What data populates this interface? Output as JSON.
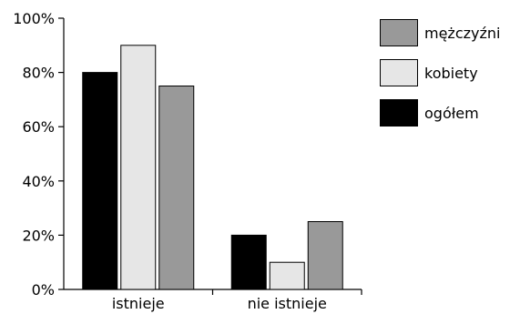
{
  "chart_data": {
    "type": "bar",
    "categories": [
      "istnieje",
      "nie istnieje"
    ],
    "series": [
      {
        "name": "ogółem",
        "values": [
          80,
          20
        ],
        "color": "#000000"
      },
      {
        "name": "kobiety",
        "values": [
          90,
          10
        ],
        "color": "#e6e6e6"
      },
      {
        "name": "mężczyźni",
        "values": [
          75,
          25
        ],
        "color": "#999999"
      }
    ],
    "y_ticks": [
      0,
      20,
      40,
      60,
      80,
      100
    ],
    "y_tick_labels": [
      "0%",
      "20%",
      "40%",
      "60%",
      "80%",
      "100%"
    ],
    "ylim": [
      0,
      100
    ],
    "grid": false,
    "legend_position": "top-right",
    "legend_order": [
      "mężczyźni",
      "kobiety",
      "ogółem"
    ]
  }
}
